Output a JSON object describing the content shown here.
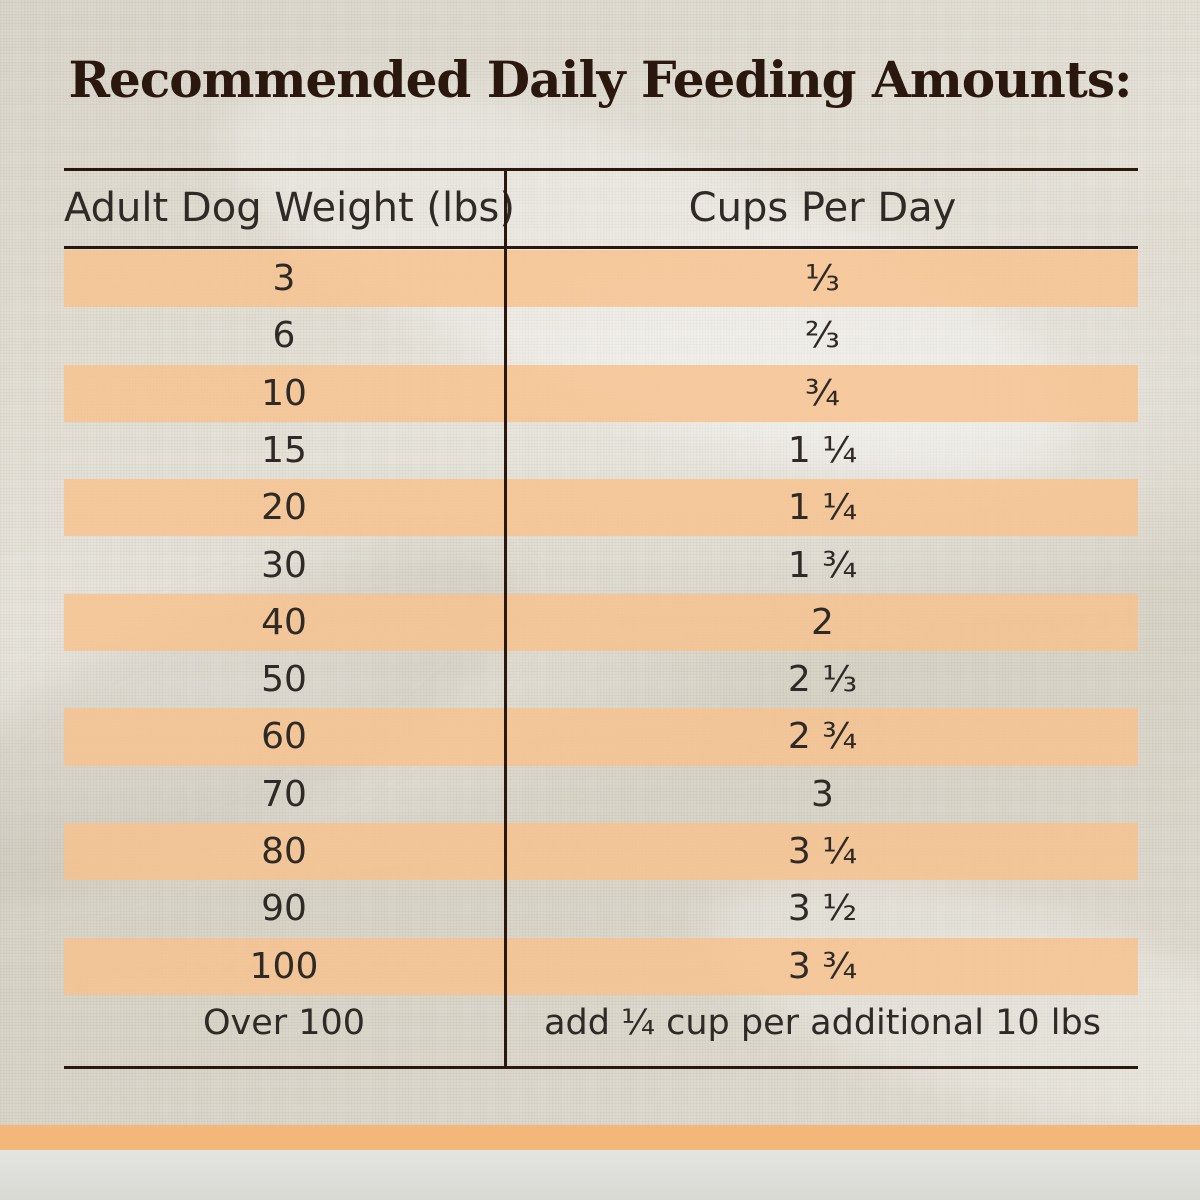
{
  "title": "Recommended Daily Feeding Amounts:",
  "table": {
    "headers": [
      "Adult Dog Weight (lbs)",
      "Cups Per Day"
    ],
    "rows": [
      [
        "3",
        "⅓"
      ],
      [
        "6",
        "⅔"
      ],
      [
        "10",
        "¾"
      ],
      [
        "15",
        "1 ¼"
      ],
      [
        "20",
        "1 ¼"
      ],
      [
        "30",
        "1 ¾"
      ],
      [
        "40",
        "2"
      ],
      [
        "50",
        "2 ⅓"
      ],
      [
        "60",
        "2 ¾"
      ],
      [
        "70",
        "3"
      ],
      [
        "80",
        "3 ¼"
      ],
      [
        "90",
        "3 ½"
      ],
      [
        "100",
        "3 ¾"
      ],
      [
        "Over 100",
        "add ¼ cup per additional 10 lbs"
      ]
    ]
  },
  "colors": {
    "title": "#2a170e",
    "stripe": "#f8c28e",
    "rule": "#2a170e",
    "bottom_band": "#f4b77a"
  }
}
